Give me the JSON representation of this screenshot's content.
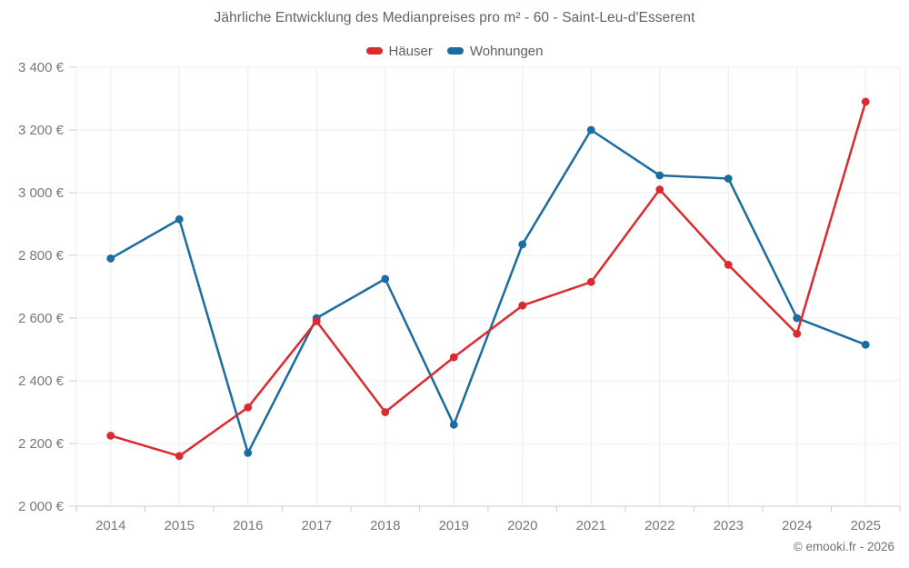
{
  "footer": {
    "credit": "© emooki.fr - 2026"
  },
  "chart_data": {
    "type": "line",
    "title": "Jährliche Entwicklung des Medianpreises pro m² - 60 - Saint-Leu-d'Esserent",
    "categories": [
      "2014",
      "2015",
      "2016",
      "2017",
      "2018",
      "2019",
      "2020",
      "2021",
      "2022",
      "2023",
      "2024",
      "2025"
    ],
    "series": [
      {
        "name": "Häuser",
        "color": "#d92b30",
        "values": [
          2225,
          2160,
          2315,
          2590,
          2300,
          2475,
          2640,
          2715,
          3010,
          2770,
          2550,
          3290
        ]
      },
      {
        "name": "Wohnungen",
        "color": "#1a6d9e",
        "values": [
          2790,
          2915,
          2170,
          2600,
          2725,
          2260,
          2835,
          3200,
          3055,
          3045,
          2600,
          2515
        ]
      }
    ],
    "xlabel": "",
    "ylabel": "",
    "ylim": [
      2000,
      3400
    ],
    "y_ticks": {
      "values": [
        2000,
        2200,
        2400,
        2600,
        2800,
        3000,
        3200,
        3400
      ],
      "labels": [
        "2 000 €",
        "2 200 €",
        "2 400 €",
        "2 600 €",
        "2 800 €",
        "3 000 €",
        "3 200 €",
        "3 400 €"
      ]
    },
    "grid": true,
    "legend_position": "top",
    "marker_radius": 4.4,
    "line_width": 2.5,
    "grid_color": "#ececec",
    "axis_color": "#cccccc"
  }
}
